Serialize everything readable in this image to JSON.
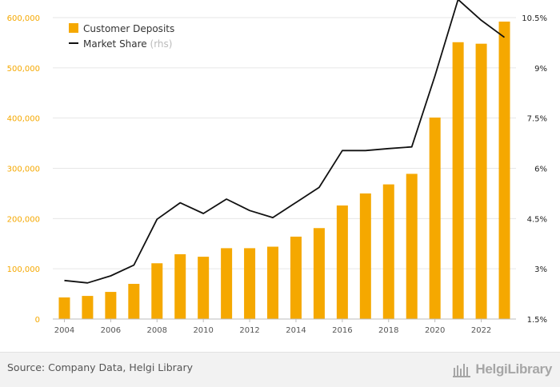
{
  "chart_data": {
    "type": "bar",
    "categories": [
      "2004",
      "2005",
      "2006",
      "2007",
      "2008",
      "2009",
      "2010",
      "2011",
      "2012",
      "2013",
      "2014",
      "2015",
      "2016",
      "2017",
      "2018",
      "2019",
      "2020",
      "2021",
      "2022",
      "2023"
    ],
    "series": [
      {
        "name": "Customer Deposits",
        "type": "bar",
        "axis": "left",
        "color": "#f5a800",
        "values": [
          43000,
          46000,
          54000,
          70000,
          111000,
          129000,
          124000,
          141000,
          141000,
          144000,
          164000,
          181000,
          226000,
          250000,
          268000,
          289000,
          401000,
          551000,
          548000,
          592000
        ]
      },
      {
        "name": "Market Share",
        "type": "line",
        "axis": "right",
        "color": "#111111",
        "values": [
          2.65,
          2.58,
          2.79,
          3.11,
          4.48,
          4.97,
          4.65,
          5.08,
          4.74,
          4.53,
          4.98,
          5.43,
          6.53,
          6.53,
          6.59,
          6.64,
          8.76,
          11.04,
          10.42,
          9.91
        ]
      }
    ],
    "y_left": {
      "ylim": [
        0,
        600000
      ],
      "ticks": [
        "0",
        "100,000",
        "200,000",
        "300,000",
        "400,000",
        "500,000",
        "600,000"
      ]
    },
    "y_right": {
      "ylim": [
        1.5,
        10.5
      ],
      "ticks": [
        "1.5%",
        "3%",
        "4.5%",
        "6%",
        "7.5%",
        "9%",
        "10.5%"
      ]
    },
    "x_ticks": [
      "2004",
      "2006",
      "2008",
      "2010",
      "2012",
      "2014",
      "2016",
      "2018",
      "2020",
      "2022"
    ],
    "legend": {
      "placement": "top-left",
      "items": [
        {
          "label": "Customer Deposits",
          "suffix": ""
        },
        {
          "label": "Market Share",
          "suffix": "(rhs)"
        }
      ]
    },
    "grid": "horizontal"
  },
  "footer": {
    "source": "Source: Company Data, Helgi Library",
    "brand": "HelgiLibrary"
  }
}
